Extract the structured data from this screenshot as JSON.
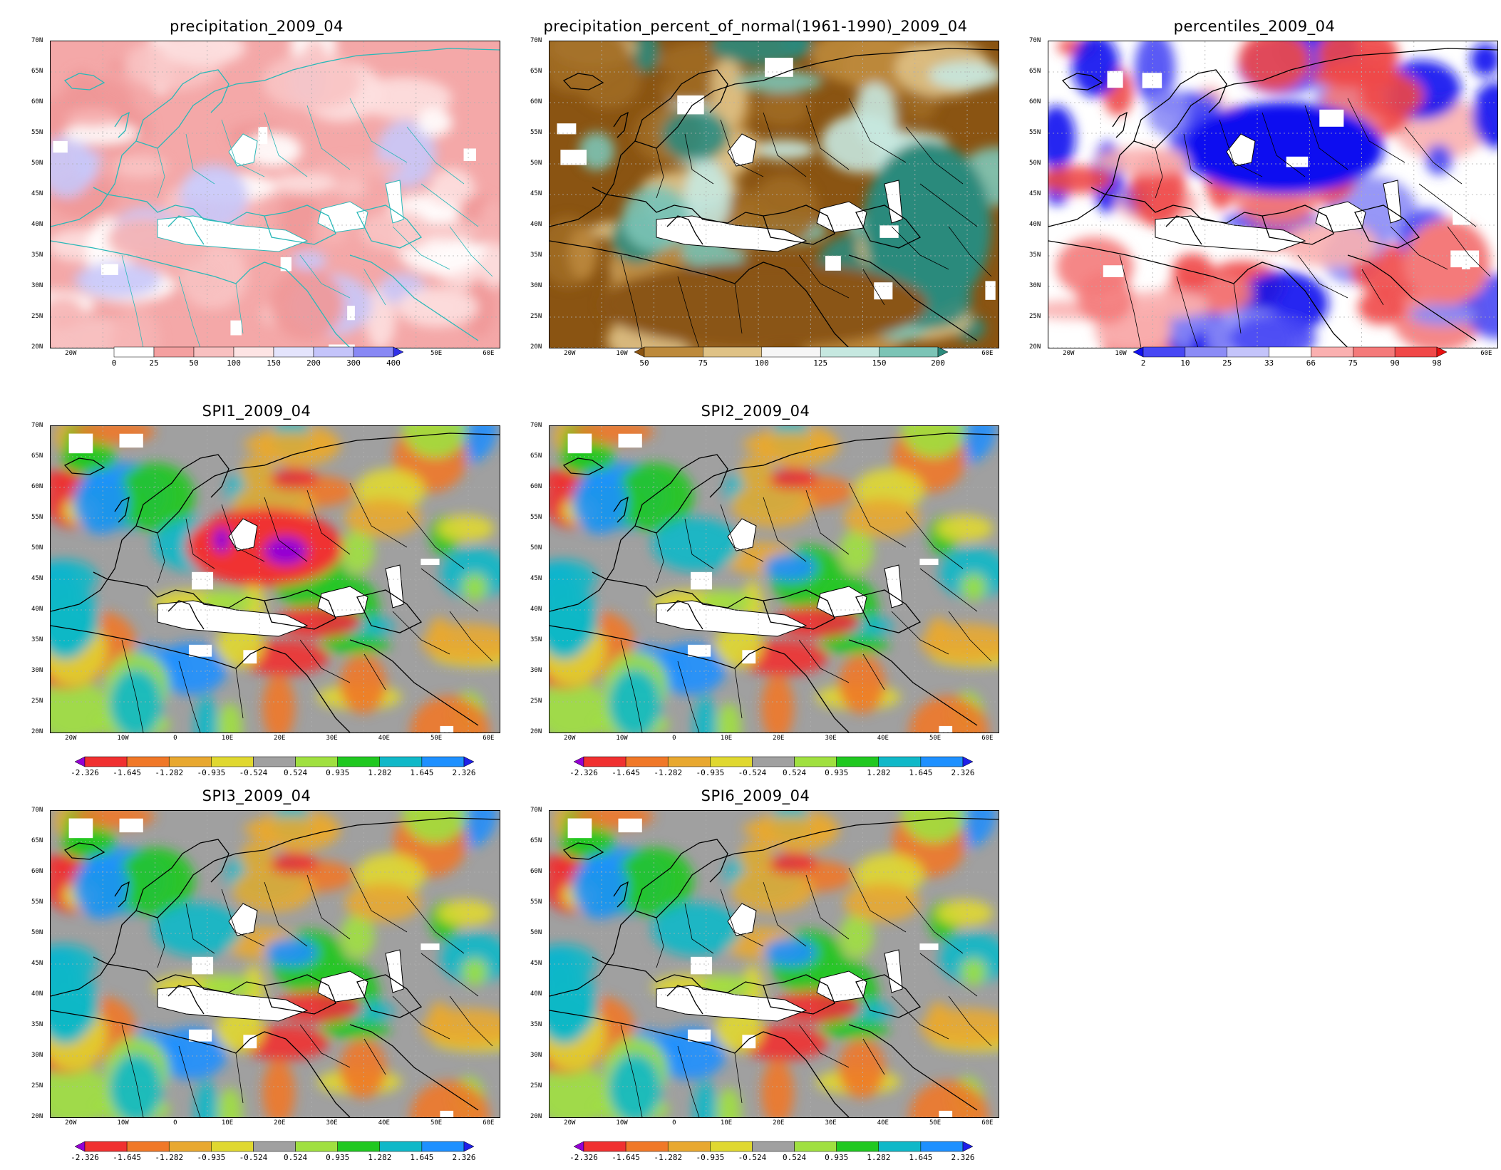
{
  "panels": [
    {
      "id": "precipitation",
      "title": "precipitation_2009_04",
      "scheme": "precip",
      "colorbar": {
        "labels": [
          "0",
          "25",
          "50",
          "100",
          "150",
          "200",
          "300",
          "400"
        ],
        "colors": [
          "#ffffff",
          "#f4a0a0",
          "#f8c0c0",
          "#fde4e4",
          "#e4e4fc",
          "#c4c4fa",
          "#8888f4",
          "#3030e8"
        ]
      }
    },
    {
      "id": "percent-of-normal",
      "title": "precipitation_percent_of_normal(1961-1990)_2009_04",
      "scheme": "percent",
      "colorbar": {
        "labels": [
          "50",
          "75",
          "100",
          "125",
          "150",
          "200"
        ],
        "colors": [
          "#8a5412",
          "#bd8a3c",
          "#dfc286",
          "#f6f6f6",
          "#c6e8e0",
          "#7cc4b6",
          "#2c8a7c"
        ]
      }
    },
    {
      "id": "percentiles",
      "title": "percentiles_2009_04",
      "scheme": "percentile",
      "colorbar": {
        "labels": [
          "2",
          "10",
          "25",
          "33",
          "66",
          "75",
          "90",
          "98"
        ],
        "colors": [
          "#1010f0",
          "#4848f4",
          "#8c8cf6",
          "#c4c4fa",
          "#ffffff",
          "#fab0b0",
          "#f47a7a",
          "#f04848",
          "#e81010"
        ]
      }
    },
    {
      "id": "spi1",
      "title": "SPI1_2009_04",
      "scheme": "spi1",
      "colorbar": {
        "labels": [
          "-2.326",
          "-1.645",
          "-1.282",
          "-0.935",
          "-0.524",
          "0.524",
          "0.935",
          "1.282",
          "1.645",
          "2.326"
        ],
        "colors": [
          "#9400d3",
          "#f03030",
          "#f07828",
          "#e8a830",
          "#e0d830",
          "#a0a0a0",
          "#a0e040",
          "#20c820",
          "#10b8c8",
          "#1e90ff",
          "#2020e8"
        ]
      }
    },
    {
      "id": "spi2",
      "title": "SPI2_2009_04",
      "scheme": "spi2",
      "colorbar": {
        "labels": [
          "-2.326",
          "-1.645",
          "-1.282",
          "-0.935",
          "-0.524",
          "0.524",
          "0.935",
          "1.282",
          "1.645",
          "2.326"
        ],
        "colors": [
          "#9400d3",
          "#f03030",
          "#f07828",
          "#e8a830",
          "#e0d830",
          "#a0a0a0",
          "#a0e040",
          "#20c820",
          "#10b8c8",
          "#1e90ff",
          "#2020e8"
        ]
      }
    },
    {
      "id": "spi3",
      "title": "SPI3_2009_04",
      "scheme": "spi3",
      "colorbar": {
        "labels": [
          "-2.326",
          "-1.645",
          "-1.282",
          "-0.935",
          "-0.524",
          "0.524",
          "0.935",
          "1.282",
          "1.645",
          "2.326"
        ],
        "colors": [
          "#9400d3",
          "#f03030",
          "#f07828",
          "#e8a830",
          "#e0d830",
          "#a0a0a0",
          "#a0e040",
          "#20c820",
          "#10b8c8",
          "#1e90ff",
          "#2020e8"
        ]
      }
    },
    {
      "id": "spi6",
      "title": "SPI6_2009_04",
      "scheme": "spi6",
      "colorbar": {
        "labels": [
          "-2.326",
          "-1.645",
          "-1.282",
          "-0.935",
          "-0.524",
          "0.524",
          "0.935",
          "1.282",
          "1.645",
          "2.326"
        ],
        "colors": [
          "#9400d3",
          "#f03030",
          "#f07828",
          "#e8a830",
          "#e0d830",
          "#a0a0a0",
          "#a0e040",
          "#20c820",
          "#10b8c8",
          "#1e90ff",
          "#2020e8"
        ]
      }
    }
  ],
  "axes": {
    "lat_labels": [
      "70N",
      "65N",
      "60N",
      "55N",
      "50N",
      "45N",
      "40N",
      "35N",
      "30N",
      "25N",
      "20N"
    ],
    "lon_labels": [
      "20W",
      "10W",
      "0",
      "10E",
      "20E",
      "30E",
      "40E",
      "50E",
      "60E"
    ]
  },
  "colors": {
    "land_mask": "#ffffff",
    "coastline": "#000000",
    "coastline_precip": "#2ab8b8",
    "gridline": "#b0b0b0"
  }
}
